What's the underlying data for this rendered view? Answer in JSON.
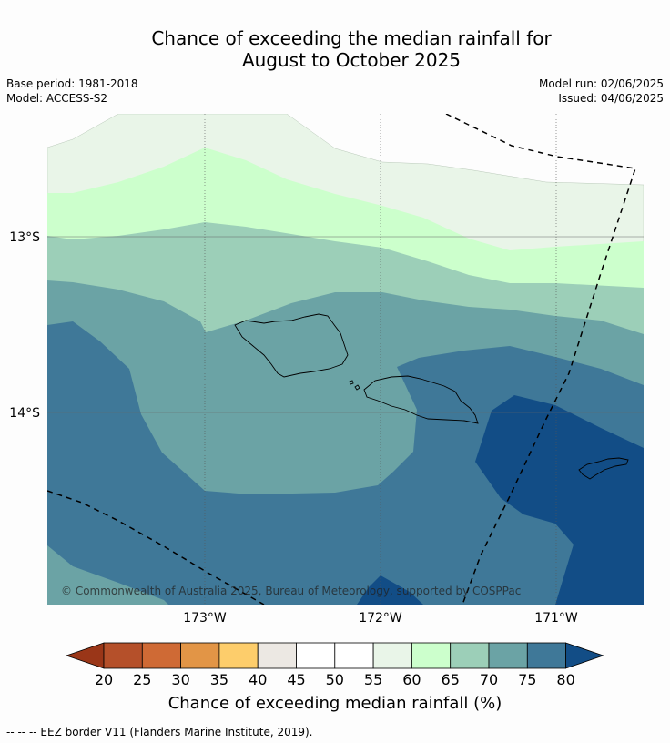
{
  "title_line1": "Chance of exceeding the median rainfall for",
  "title_line2": "August to October 2025",
  "base_period": "Base period: 1981-2018",
  "model": "Model: ACCESS-S2",
  "model_run": "Model run: 02/06/2025",
  "issued": "Issued: 04/06/2025",
  "lat_labels": [
    "13°S",
    "14°S"
  ],
  "lon_labels": [
    "173°W",
    "172°W",
    "171°W"
  ],
  "copyright": "© Commonwealth of Australia 2025, Bureau of Meteorology, supported by COSPPac",
  "colorbar": {
    "ticks": [
      "20",
      "25",
      "30",
      "35",
      "40",
      "45",
      "50",
      "55",
      "60",
      "65",
      "70",
      "75",
      "80"
    ],
    "colors": [
      "#9a3618",
      "#b5502a",
      "#cf6a35",
      "#e29546",
      "#fdcd6b",
      "#ece8e3",
      "#ffffff",
      "#ffffff",
      "#e9f5e8",
      "#ccffcc",
      "#9ccfb8",
      "#6ba3a5",
      "#3f7898",
      "#124d86"
    ],
    "title": "Chance of exceeding median rainfall (%)"
  },
  "footer": "--  --  -- EEZ border V11 (Flanders Marine Institute, 2019)."
}
